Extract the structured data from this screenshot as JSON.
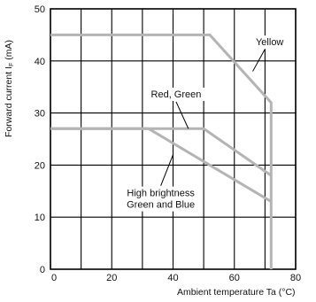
{
  "chart_data": {
    "type": "line",
    "title": "",
    "xlabel": "Ambient temperature Ta (°C)",
    "ylabel_main": "Forward current I",
    "ylabel_sub": "F",
    "ylabel_unit": " (mA)",
    "xlim": [
      0,
      80
    ],
    "ylim": [
      0,
      50
    ],
    "x_ticks": [
      0,
      20,
      40,
      60,
      80
    ],
    "y_ticks": [
      0,
      10,
      20,
      30,
      40,
      50
    ],
    "grid": true,
    "series": [
      {
        "name": "Yellow",
        "x": [
          0,
          52,
          72,
          72
        ],
        "y": [
          45,
          45,
          32,
          0
        ]
      },
      {
        "name": "Red, Green",
        "x": [
          0,
          50,
          72
        ],
        "y": [
          27,
          27,
          18
        ]
      },
      {
        "name": "High brightness Green and Blue",
        "x": [
          0,
          32,
          72
        ],
        "y": [
          27,
          27,
          13
        ]
      }
    ],
    "annotations": [
      {
        "lines": [
          "Yellow"
        ],
        "x": 67,
        "y": 43,
        "anchor": "start",
        "point": [
          66,
          38
        ]
      },
      {
        "lines": [
          "Red, Green"
        ],
        "x": 41,
        "y": 33,
        "anchor": "middle",
        "point": [
          45,
          27
        ]
      },
      {
        "lines": [
          "High brightness",
          "Green and Blue"
        ],
        "x": 36,
        "y": 14,
        "anchor": "middle",
        "point": [
          40,
          22
        ]
      }
    ]
  }
}
